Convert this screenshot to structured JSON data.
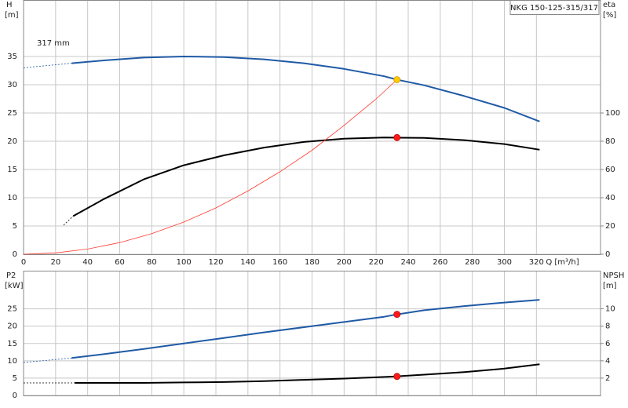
{
  "chart_data": [
    {
      "type": "line",
      "title": "NKG 150-125-315/317",
      "ylabel": "H",
      "yunit": "[m]",
      "y2label": "eta",
      "y2unit": "[%]",
      "xlabel": "Q [m³/h]",
      "annotation": "317 mm",
      "xlim": [
        0,
        360
      ],
      "xticks": [
        0,
        20,
        40,
        60,
        80,
        100,
        120,
        140,
        160,
        180,
        200,
        220,
        240,
        260,
        280,
        300,
        320
      ],
      "ylim": [
        0,
        45
      ],
      "yticks": [
        0,
        5,
        10,
        15,
        20,
        25,
        30,
        35
      ],
      "y2lim": [
        0,
        180
      ],
      "y2ticks": [
        0,
        20,
        40,
        60,
        80,
        100
      ],
      "grid": true,
      "series": [
        {
          "color": "#1f5aa6",
          "width": 2,
          "dashed": true,
          "x": [
            0,
            30
          ],
          "values": [
            33,
            33.8
          ]
        },
        {
          "color": "#1f5aa6",
          "width": 2,
          "x": [
            30,
            50,
            75,
            100,
            125,
            150,
            175,
            200,
            225,
            233,
            250,
            275,
            300,
            322
          ],
          "values": [
            33.8,
            34.3,
            34.8,
            35.0,
            34.9,
            34.5,
            33.8,
            32.8,
            31.5,
            30.9,
            29.9,
            28.0,
            25.9,
            23.5
          ]
        },
        {
          "color": "#000000",
          "width": 2,
          "dashed": true,
          "axis": "y2",
          "x": [
            25,
            31
          ],
          "values": [
            20.6,
            27
          ]
        },
        {
          "color": "#000000",
          "width": 2,
          "axis": "y2",
          "x": [
            31,
            50,
            75,
            100,
            125,
            150,
            175,
            200,
            225,
            250,
            275,
            300,
            322
          ],
          "values": [
            27,
            39,
            53,
            63,
            70,
            75.5,
            79.5,
            81.8,
            82.6,
            82.4,
            80.8,
            78,
            74
          ]
        },
        {
          "color": "#ff3b30",
          "width": 0.8,
          "x": [
            0,
            20,
            40,
            60,
            80,
            100,
            120,
            140,
            160,
            180,
            200,
            220,
            233
          ],
          "values": [
            0,
            0.23,
            0.91,
            2.05,
            3.64,
            5.69,
            8.2,
            11.2,
            14.6,
            18.4,
            22.8,
            27.5,
            30.9
          ]
        },
        {
          "color": "#ffcc00",
          "marker": true,
          "x": [
            233
          ],
          "values": [
            30.9
          ]
        },
        {
          "color": "#ff1a1a",
          "marker": true,
          "axis": "y2",
          "x": [
            233
          ],
          "values": [
            82.6
          ]
        }
      ]
    },
    {
      "type": "line",
      "ylabel": "P2",
      "yunit": "[kW]",
      "y2label": "NPSH",
      "y2unit": "[m]",
      "xlim": [
        0,
        360
      ],
      "ylim": [
        0,
        36
      ],
      "yticks": [
        0,
        5,
        10,
        15,
        20,
        25
      ],
      "y2lim": [
        0,
        14.4
      ],
      "y2ticks": [
        2,
        4,
        6,
        8,
        10
      ],
      "grid": true,
      "series": [
        {
          "color": "#1f5aa6",
          "width": 2,
          "dashed": true,
          "x": [
            0,
            30
          ],
          "values": [
            9.5,
            10.8
          ]
        },
        {
          "color": "#1f5aa6",
          "width": 2,
          "x": [
            30,
            50,
            75,
            100,
            125,
            150,
            175,
            200,
            225,
            233,
            250,
            275,
            300,
            322
          ],
          "values": [
            10.8,
            11.9,
            13.4,
            15.0,
            16.6,
            18.2,
            19.7,
            21.2,
            22.7,
            23.4,
            24.6,
            25.8,
            26.8,
            27.6
          ]
        },
        {
          "color": "#000000",
          "width": 2,
          "dashed": true,
          "axis": "y2",
          "x": [
            0,
            32
          ],
          "values": [
            1.45,
            1.45
          ]
        },
        {
          "color": "#000000",
          "width": 2,
          "axis": "y2",
          "x": [
            32,
            75,
            100,
            125,
            150,
            175,
            200,
            233,
            250,
            275,
            300,
            322
          ],
          "values": [
            1.45,
            1.45,
            1.5,
            1.55,
            1.65,
            1.8,
            1.95,
            2.2,
            2.4,
            2.7,
            3.1,
            3.6
          ]
        },
        {
          "color": "#ff1a1a",
          "marker": true,
          "x": [
            233
          ],
          "values": [
            23.4
          ]
        },
        {
          "color": "#ff1a1a",
          "marker": true,
          "axis": "y2",
          "x": [
            233
          ],
          "values": [
            2.2
          ]
        }
      ]
    }
  ]
}
